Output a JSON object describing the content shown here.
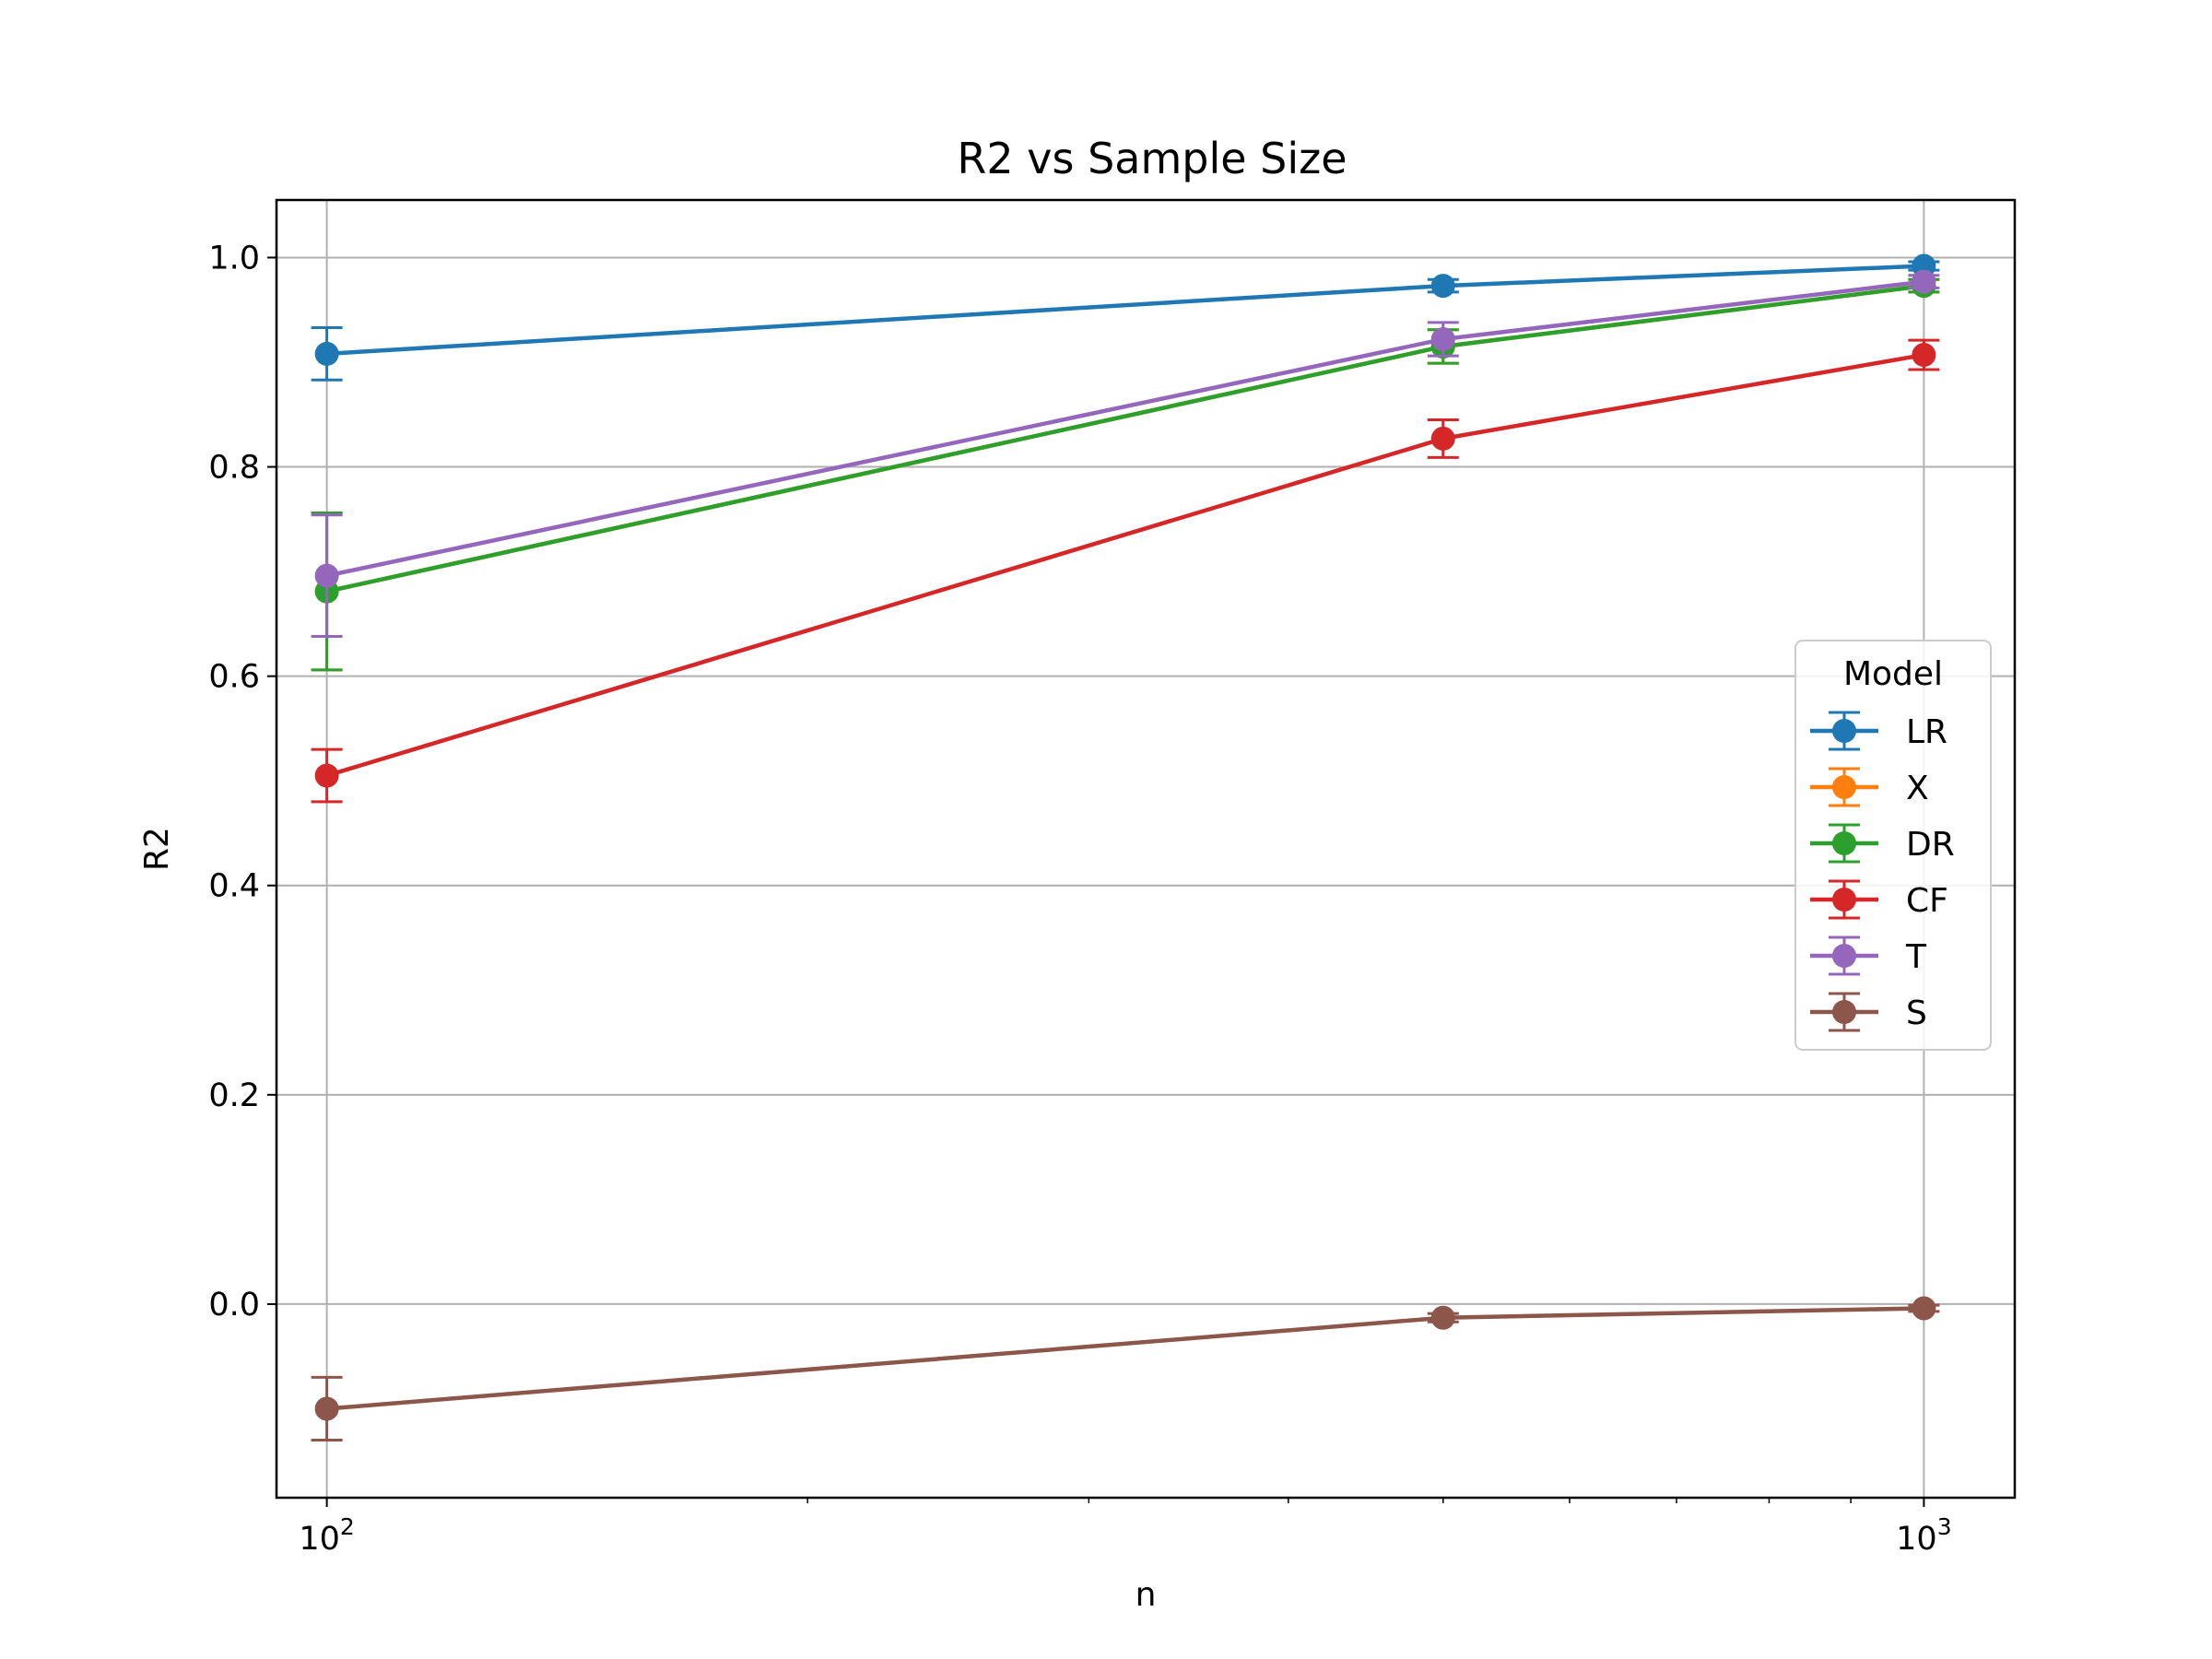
{
  "chart_data": {
    "type": "line",
    "title": "R2 vs Sample Size",
    "xlabel": "n",
    "ylabel": "R2",
    "x_scale": "log",
    "xlim": [
      93,
      1140
    ],
    "ylim": [
      -0.185,
      1.055
    ],
    "x_ticks": [
      {
        "value": 100,
        "base": "10",
        "exp": "2"
      },
      {
        "value": 1000,
        "base": "10",
        "exp": "3"
      }
    ],
    "y_ticks": [
      {
        "value": 0.0,
        "label": "0.0"
      },
      {
        "value": 0.2,
        "label": "0.2"
      },
      {
        "value": 0.4,
        "label": "0.4"
      },
      {
        "value": 0.6,
        "label": "0.6"
      },
      {
        "value": 0.8,
        "label": "0.8"
      },
      {
        "value": 1.0,
        "label": "1.0"
      }
    ],
    "grid": true,
    "legend": {
      "title": "Model",
      "placement": "right"
    },
    "x": [
      100,
      500,
      1000
    ],
    "series": [
      {
        "name": "LR",
        "color": "#1f77b4",
        "values": [
          0.908,
          0.973,
          0.992
        ],
        "errors": [
          0.025,
          0.006,
          0.004
        ]
      },
      {
        "name": "X",
        "color": "#ff7f0e",
        "values": [
          0.681,
          0.915,
          0.973
        ],
        "errors": [
          0.075,
          0.016,
          0.006
        ]
      },
      {
        "name": "DR",
        "color": "#2ca02c",
        "values": [
          0.681,
          0.915,
          0.973
        ],
        "errors": [
          0.075,
          0.016,
          0.006
        ]
      },
      {
        "name": "CF",
        "color": "#d62728",
        "values": [
          0.505,
          0.827,
          0.907
        ],
        "errors": [
          0.025,
          0.018,
          0.014
        ]
      },
      {
        "name": "T",
        "color": "#9467bd",
        "values": [
          0.696,
          0.922,
          0.977
        ],
        "errors": [
          0.058,
          0.016,
          0.006
        ]
      },
      {
        "name": "S",
        "color": "#8c564b",
        "values": [
          -0.1,
          -0.013,
          -0.004
        ],
        "errors": [
          0.03,
          0.004,
          0.003
        ]
      }
    ]
  }
}
